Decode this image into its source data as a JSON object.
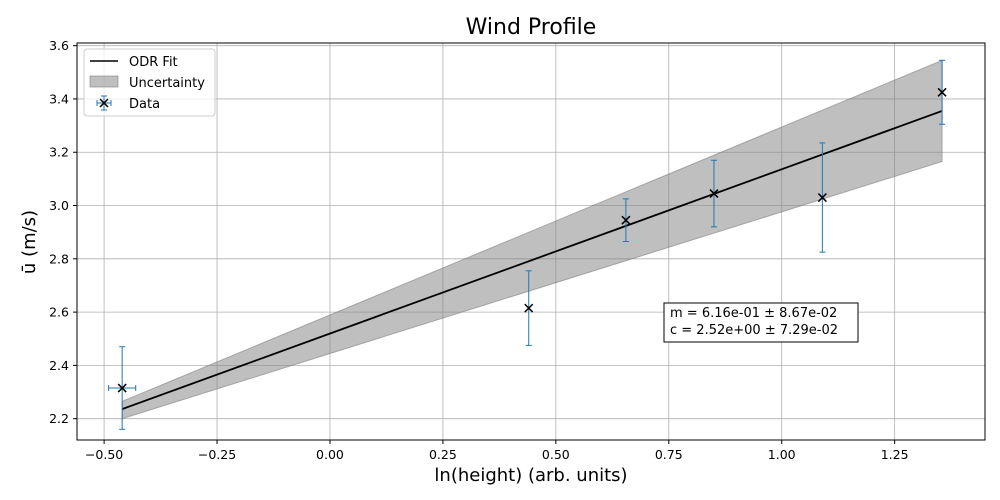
{
  "chart_data": {
    "type": "scatter",
    "title": "Wind Profile",
    "xlabel": "ln(height) (arb. units)",
    "ylabel": "ū (m/s)",
    "xlim": [
      -0.56,
      1.45
    ],
    "ylim": [
      2.12,
      3.61
    ],
    "xticks": [
      -0.5,
      -0.25,
      0.0,
      0.25,
      0.5,
      0.75,
      1.0,
      1.25
    ],
    "xtick_labels": [
      "−0.50",
      "−0.25",
      "0.00",
      "0.25",
      "0.50",
      "0.75",
      "1.00",
      "1.25"
    ],
    "yticks": [
      2.2,
      2.4,
      2.6,
      2.8,
      3.0,
      3.2,
      3.4,
      3.6
    ],
    "ytick_labels": [
      "2.2",
      "2.4",
      "2.6",
      "2.8",
      "3.0",
      "3.2",
      "3.4",
      "3.6"
    ],
    "grid": true,
    "legend_position": "top-left",
    "legend": [
      "ODR Fit",
      "Uncertainty",
      "Data"
    ],
    "series": [
      {
        "name": "Data",
        "kind": "errorbar",
        "color": "#1f77b4",
        "marker_color": "#000000",
        "points": [
          {
            "x": -0.46,
            "y": 2.315,
            "yerr": 0.155,
            "xerr": 0.03
          },
          {
            "x": 0.44,
            "y": 2.615,
            "yerr": 0.14,
            "xerr": 0.0
          },
          {
            "x": 0.655,
            "y": 2.945,
            "yerr": 0.08,
            "xerr": 0.0
          },
          {
            "x": 0.85,
            "y": 3.045,
            "yerr": 0.125,
            "xerr": 0.0
          },
          {
            "x": 1.09,
            "y": 3.03,
            "yerr": 0.205,
            "xerr": 0.0
          },
          {
            "x": 1.355,
            "y": 3.425,
            "yerr": 0.12,
            "xerr": 0.0
          }
        ]
      },
      {
        "name": "ODR Fit",
        "kind": "line",
        "color": "#000000",
        "x": [
          -0.46,
          1.355
        ],
        "y": [
          2.236,
          3.355
        ]
      },
      {
        "name": "Uncertainty",
        "kind": "band",
        "color": "#808080",
        "x": [
          -0.46,
          1.355
        ],
        "y_upper": [
          2.265,
          3.545
        ],
        "y_lower": [
          2.2,
          3.165
        ]
      }
    ],
    "annotation": {
      "lines": [
        "m = 6.16e-01 ± 8.67e-02",
        "c = 2.52e+00 ± 7.29e-02"
      ]
    }
  }
}
